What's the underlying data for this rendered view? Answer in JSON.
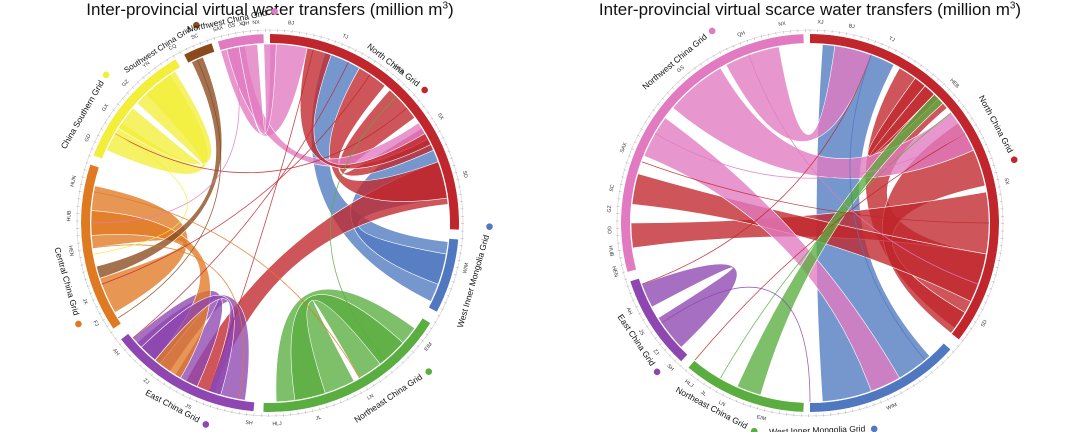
{
  "left": {
    "title": "Inter-provincial virtual water transfers (million m",
    "title_sup": "3",
    "title_end": ")",
    "grids": [
      {
        "label": "North China Grid",
        "color": "#c0262c"
      },
      {
        "label": "West Inner Mongolia Grid",
        "color": "#4f78c0"
      },
      {
        "label": "Northeast China Grid",
        "color": "#5aad3f"
      },
      {
        "label": "East China Grid",
        "color": "#8e46b0"
      },
      {
        "label": "Central China Grid",
        "color": "#e07a22"
      },
      {
        "label": "China Southern Grid",
        "color": "#f2ee3a"
      },
      {
        "label": "Southwest China Grid",
        "color": "#8a4a1c"
      },
      {
        "label": "Northwest China Grid",
        "color": "#e17ac0"
      }
    ],
    "provinces": [
      "XJ",
      "BJ",
      "TJ",
      "HEB",
      "SX",
      "SD",
      "WIM",
      "EIM",
      "LN",
      "JL",
      "HLJ",
      "SH",
      "JS",
      "ZJ",
      "AH",
      "FJ",
      "JX",
      "HEN",
      "HUB",
      "HUN",
      "GD",
      "GX",
      "GZ",
      "YN",
      "CQ",
      "SC",
      "SAX",
      "GS",
      "QH",
      "NX"
    ]
  },
  "right": {
    "title": "Inter-provincial virtual scarce water transfers (million m",
    "title_sup": "3",
    "title_end": ")",
    "grids": [
      {
        "label": "North China Grid",
        "color": "#c0262c"
      },
      {
        "label": "West Inner Mongolia Grid",
        "color": "#4f78c0"
      },
      {
        "label": "Northeast China Grid",
        "color": "#5aad3f"
      },
      {
        "label": "East China Grid",
        "color": "#8e46b0"
      },
      {
        "label": "Northwest China Grid",
        "color": "#e17ac0"
      }
    ],
    "provinces": [
      "XJ",
      "BJ",
      "TJ",
      "HEB",
      "SX",
      "SD",
      "WIM",
      "EIM",
      "LN",
      "JL",
      "HLJ",
      "SH",
      "ZJ",
      "JS",
      "AH",
      "HEN",
      "HUB",
      "GD",
      "GZ",
      "SC",
      "SAX",
      "GS",
      "QH",
      "NX"
    ]
  }
}
